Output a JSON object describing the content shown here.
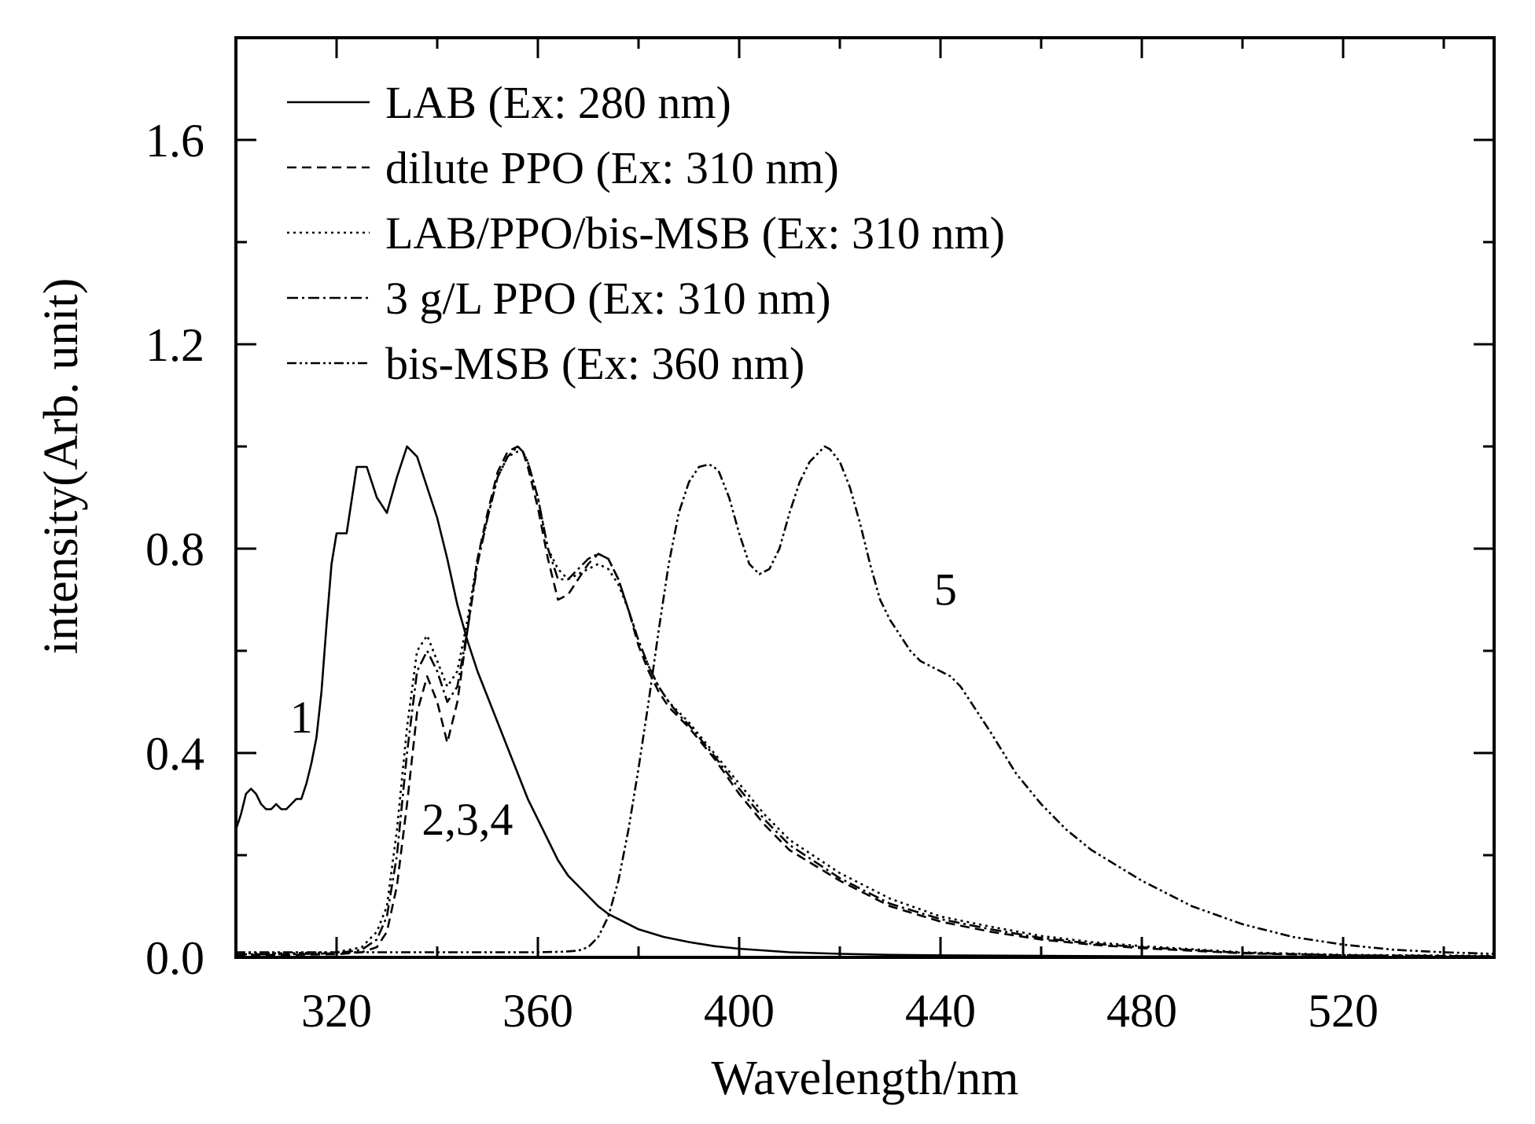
{
  "chart_data": {
    "type": "line",
    "title": "",
    "xlabel": "Wavelength/nm",
    "ylabel": "intensity(Arb. unit)",
    "xlim": [
      300,
      550
    ],
    "ylim": [
      0,
      1.8
    ],
    "xticks": [
      320,
      360,
      400,
      440,
      480,
      520
    ],
    "yticks": [
      0.0,
      0.4,
      0.8,
      1.2,
      1.6
    ],
    "xtick_labels": [
      "320",
      "360",
      "400",
      "440",
      "480",
      "520"
    ],
    "ytick_labels": [
      "0.0",
      "0.4",
      "0.8",
      "1.2",
      "1.6"
    ],
    "grid": false,
    "legend_position": "top-left",
    "series": [
      {
        "name": "LAB (Ex: 280 nm)",
        "dash": "solid",
        "x": [
          300,
          301,
          302,
          303,
          304,
          305,
          306,
          307,
          308,
          309,
          310,
          311,
          312,
          313,
          314,
          315,
          316,
          317,
          318,
          319,
          320,
          322,
          324,
          326,
          328,
          330,
          332,
          334,
          336,
          338,
          340,
          342,
          344,
          346,
          348,
          350,
          352,
          354,
          356,
          358,
          360,
          362,
          364,
          366,
          368,
          370,
          372,
          374,
          376,
          378,
          380,
          385,
          390,
          395,
          400,
          410,
          420,
          430,
          440,
          460,
          480,
          500,
          520,
          550
        ],
        "y": [
          0.25,
          0.28,
          0.32,
          0.33,
          0.32,
          0.3,
          0.29,
          0.29,
          0.3,
          0.29,
          0.29,
          0.3,
          0.31,
          0.31,
          0.34,
          0.38,
          0.43,
          0.52,
          0.65,
          0.77,
          0.83,
          0.83,
          0.96,
          0.96,
          0.9,
          0.87,
          0.94,
          1.0,
          0.98,
          0.92,
          0.86,
          0.78,
          0.69,
          0.62,
          0.56,
          0.51,
          0.46,
          0.41,
          0.36,
          0.31,
          0.27,
          0.23,
          0.19,
          0.16,
          0.14,
          0.12,
          0.1,
          0.085,
          0.075,
          0.065,
          0.055,
          0.04,
          0.03,
          0.022,
          0.017,
          0.01,
          0.007,
          0.005,
          0.004,
          0.003,
          0.002,
          0.002,
          0.001,
          0.001
        ]
      },
      {
        "name": "dilute PPO (Ex: 310 nm)",
        "dash": "dashed",
        "x": [
          300,
          310,
          320,
          325,
          328,
          330,
          332,
          334,
          336,
          338,
          340,
          342,
          344,
          346,
          348,
          350,
          352,
          354,
          356,
          357,
          358,
          360,
          362,
          364,
          366,
          368,
          370,
          372,
          374,
          376,
          378,
          380,
          382,
          384,
          386,
          388,
          390,
          395,
          400,
          405,
          410,
          420,
          430,
          440,
          450,
          460,
          470,
          480,
          500,
          520,
          550
        ],
        "y": [
          0.005,
          0.005,
          0.006,
          0.01,
          0.02,
          0.05,
          0.14,
          0.3,
          0.48,
          0.55,
          0.5,
          0.42,
          0.5,
          0.64,
          0.78,
          0.87,
          0.95,
          0.99,
          1.0,
          0.99,
          0.96,
          0.88,
          0.78,
          0.7,
          0.71,
          0.74,
          0.77,
          0.79,
          0.78,
          0.74,
          0.68,
          0.61,
          0.56,
          0.52,
          0.49,
          0.47,
          0.45,
          0.39,
          0.32,
          0.26,
          0.21,
          0.15,
          0.1,
          0.07,
          0.05,
          0.035,
          0.025,
          0.018,
          0.008,
          0.004,
          0.002
        ]
      },
      {
        "name": "LAB/PPO/bis-MSB (Ex: 310 nm)",
        "dash": "dotted",
        "x": [
          300,
          310,
          320,
          325,
          328,
          330,
          332,
          334,
          336,
          338,
          340,
          342,
          344,
          346,
          348,
          350,
          352,
          354,
          356,
          357,
          358,
          360,
          362,
          364,
          366,
          368,
          370,
          372,
          374,
          376,
          378,
          380,
          382,
          384,
          386,
          388,
          390,
          395,
          400,
          405,
          410,
          420,
          430,
          440,
          450,
          460,
          470,
          480,
          500,
          520,
          550
        ],
        "y": [
          0.008,
          0.008,
          0.01,
          0.02,
          0.05,
          0.1,
          0.25,
          0.45,
          0.6,
          0.63,
          0.58,
          0.53,
          0.56,
          0.66,
          0.78,
          0.86,
          0.94,
          0.98,
          0.99,
          0.99,
          0.97,
          0.9,
          0.8,
          0.76,
          0.74,
          0.75,
          0.76,
          0.77,
          0.76,
          0.73,
          0.68,
          0.62,
          0.57,
          0.53,
          0.5,
          0.48,
          0.46,
          0.4,
          0.34,
          0.28,
          0.23,
          0.165,
          0.115,
          0.08,
          0.06,
          0.042,
          0.03,
          0.022,
          0.01,
          0.005,
          0.003
        ]
      },
      {
        "name": "3 g/L PPO (Ex: 310 nm)",
        "dash": "dash-dot",
        "x": [
          300,
          310,
          320,
          325,
          328,
          330,
          332,
          334,
          336,
          338,
          340,
          342,
          344,
          346,
          348,
          350,
          352,
          354,
          356,
          357,
          358,
          360,
          362,
          364,
          366,
          368,
          370,
          372,
          374,
          376,
          378,
          380,
          382,
          384,
          386,
          388,
          390,
          395,
          400,
          405,
          410,
          420,
          430,
          440,
          450,
          460,
          470,
          480,
          500,
          520,
          550
        ],
        "y": [
          0.006,
          0.006,
          0.008,
          0.015,
          0.035,
          0.08,
          0.2,
          0.4,
          0.56,
          0.6,
          0.56,
          0.5,
          0.53,
          0.64,
          0.77,
          0.86,
          0.94,
          0.98,
          1.0,
          0.99,
          0.97,
          0.9,
          0.8,
          0.74,
          0.74,
          0.76,
          0.78,
          0.79,
          0.78,
          0.74,
          0.68,
          0.62,
          0.57,
          0.53,
          0.5,
          0.475,
          0.455,
          0.395,
          0.33,
          0.27,
          0.22,
          0.155,
          0.105,
          0.075,
          0.055,
          0.038,
          0.027,
          0.02,
          0.009,
          0.004,
          0.002
        ]
      },
      {
        "name": "bis-MSB (Ex: 360 nm)",
        "dash": "dash-dot-dot",
        "x": [
          300,
          320,
          340,
          360,
          365,
          368,
          370,
          372,
          374,
          376,
          378,
          380,
          382,
          384,
          386,
          388,
          390,
          392,
          394,
          395,
          396,
          398,
          400,
          402,
          404,
          406,
          408,
          410,
          412,
          414,
          416,
          417,
          418,
          420,
          422,
          424,
          426,
          428,
          430,
          432,
          434,
          436,
          438,
          440,
          442,
          444,
          446,
          448,
          450,
          455,
          460,
          465,
          470,
          475,
          480,
          490,
          500,
          510,
          520,
          530,
          540,
          550
        ],
        "y": [
          0.01,
          0.01,
          0.01,
          0.01,
          0.011,
          0.013,
          0.02,
          0.04,
          0.08,
          0.15,
          0.25,
          0.37,
          0.5,
          0.64,
          0.77,
          0.87,
          0.93,
          0.96,
          0.965,
          0.96,
          0.95,
          0.9,
          0.83,
          0.77,
          0.75,
          0.76,
          0.8,
          0.87,
          0.93,
          0.97,
          0.99,
          1.0,
          0.995,
          0.97,
          0.92,
          0.85,
          0.77,
          0.7,
          0.66,
          0.63,
          0.6,
          0.58,
          0.57,
          0.56,
          0.55,
          0.53,
          0.5,
          0.47,
          0.44,
          0.36,
          0.3,
          0.25,
          0.21,
          0.18,
          0.15,
          0.1,
          0.065,
          0.04,
          0.025,
          0.015,
          0.01,
          0.007
        ]
      }
    ],
    "annotations": [
      {
        "text": "1",
        "x": 313,
        "y": 0.44
      },
      {
        "text": "2,3,4",
        "x": 346,
        "y": 0.24
      },
      {
        "text": "5",
        "x": 441,
        "y": 0.69
      }
    ]
  }
}
